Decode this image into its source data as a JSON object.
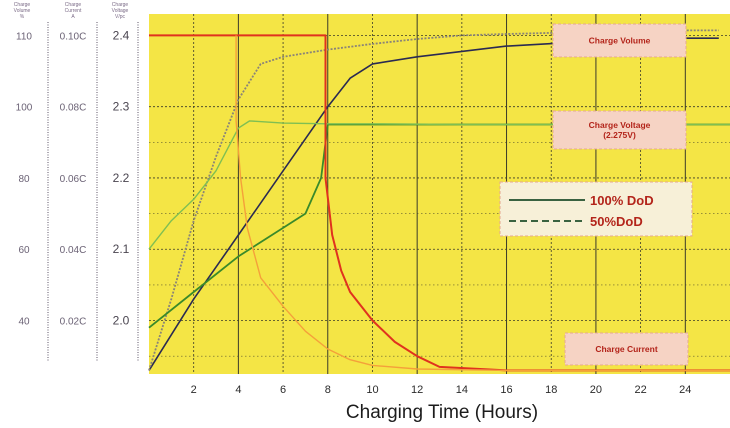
{
  "chart_data": {
    "type": "line",
    "xlabel": "Charging Time (Hours)",
    "xlim": [
      0,
      26
    ],
    "x_ticks": [
      "2",
      "4",
      "6",
      "8",
      "10",
      "12",
      "14",
      "16",
      "18",
      "20",
      "22",
      "24"
    ],
    "left_axes": [
      {
        "header": [
          "Charge",
          "Volume",
          "%"
        ],
        "ticks": [
          "110",
          "100",
          "80",
          "60",
          "40"
        ]
      },
      {
        "header": [
          "Charge",
          "Current",
          "A"
        ],
        "ticks": [
          "0.10C",
          "0.08C",
          "0.06C",
          "0.04C",
          "0.02C"
        ]
      },
      {
        "header": [
          "Charge",
          "Voltage",
          "V/pc"
        ],
        "ticks": [
          "2.4",
          "2.3",
          "2.2",
          "2.1",
          "2.0"
        ]
      }
    ],
    "voltage_range": [
      1.925,
      2.43
    ],
    "grid": true,
    "annotations": [
      "Charge Volume",
      "Charge Voltage\n(2.275V)",
      "Charge Current"
    ],
    "legend": {
      "position": "center-right",
      "entries": [
        "100% DoD",
        "50%DoD"
      ]
    },
    "series": [
      {
        "kind": "Charge Volume",
        "dod": "100% DoD",
        "x": [
          0,
          2,
          4,
          6,
          8,
          9,
          10,
          12,
          16,
          20,
          24,
          25.5
        ],
        "y": [
          1.93,
          2.03,
          2.12,
          2.21,
          2.3,
          2.34,
          2.36,
          2.37,
          2.385,
          2.392,
          2.396,
          2.396
        ]
      },
      {
        "kind": "Charge Volume",
        "dod": "50%DoD",
        "x": [
          0,
          1,
          2,
          3,
          4,
          5,
          6,
          8,
          10,
          12,
          14,
          16,
          20,
          24,
          25.5
        ],
        "y": [
          1.93,
          2.03,
          2.14,
          2.23,
          2.31,
          2.36,
          2.37,
          2.38,
          2.388,
          2.395,
          2.4,
          2.402,
          2.405,
          2.407,
          2.407
        ]
      },
      {
        "kind": "Charge Voltage",
        "dod": "100% DoD",
        "x": [
          0,
          2,
          4,
          6,
          7,
          7.7,
          8,
          9,
          12,
          16,
          20,
          24,
          26
        ],
        "y": [
          1.99,
          2.04,
          2.09,
          2.13,
          2.15,
          2.2,
          2.275,
          2.275,
          2.275,
          2.275,
          2.275,
          2.275,
          2.275
        ]
      },
      {
        "kind": "Charge Voltage",
        "dod": "50%DoD",
        "x": [
          0,
          1,
          2,
          3,
          3.5,
          4,
          4.5,
          6,
          8,
          10,
          14,
          20,
          26
        ],
        "y": [
          2.1,
          2.14,
          2.17,
          2.21,
          2.24,
          2.27,
          2.28,
          2.277,
          2.276,
          2.276,
          2.275,
          2.275,
          2.275
        ]
      },
      {
        "kind": "Charge Current",
        "dod": "100% DoD",
        "x": [
          0,
          7.9,
          7.9,
          8.2,
          8.6,
          9,
          9.5,
          10,
          11,
          12,
          13,
          16,
          20,
          24,
          26
        ],
        "y": [
          2.4,
          2.4,
          2.2,
          2.12,
          2.07,
          2.04,
          2.02,
          2.0,
          1.97,
          1.95,
          1.935,
          1.93,
          1.93,
          1.93,
          1.93
        ]
      },
      {
        "kind": "Charge Current",
        "dod": "50%DoD",
        "x": [
          3.9,
          3.9,
          4.1,
          4.4,
          5,
          6,
          7,
          8,
          9,
          10,
          12,
          16,
          20,
          26
        ],
        "y": [
          2.4,
          2.28,
          2.2,
          2.13,
          2.06,
          2.02,
          1.985,
          1.96,
          1.945,
          1.937,
          1.932,
          1.93,
          1.93,
          1.93
        ]
      }
    ],
    "colors": {
      "plot_bg": "#f4e545",
      "grid": "#3a3a2a",
      "volume_100": "#2a2a52",
      "volume_50": "#8a8478",
      "voltage_100": "#3a8a2a",
      "voltage_50": "#7fbf52",
      "current_100": "#e0321e",
      "current_50": "#f5a03a",
      "box_bg": "#f6d3c4",
      "box_text": "#b3241a",
      "legend_line": "#1f4e2a"
    }
  }
}
